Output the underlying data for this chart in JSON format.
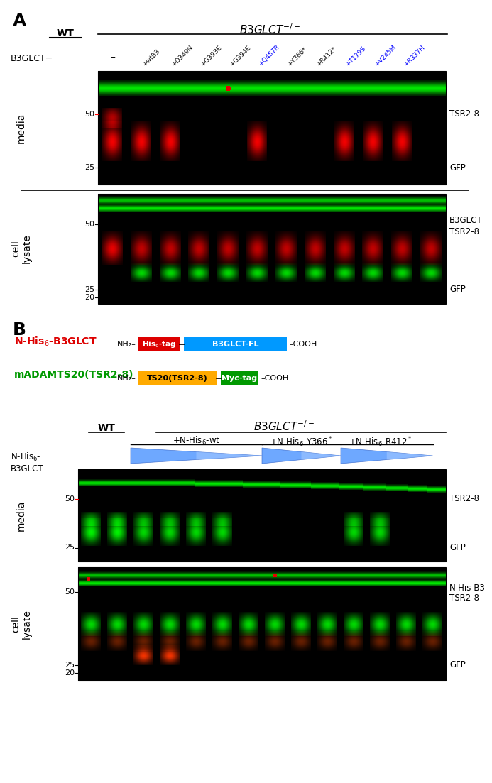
{
  "panel_A_label": "A",
  "panel_B_label": "B",
  "WT_label": "WT",
  "B3GLCT_KO_label": "B3GLCT^{-/-}",
  "panel_A_columns": [
    "+wtB3",
    "+D349N",
    "+G393E",
    "+G394E",
    "+Q457R",
    "+Y366*",
    "+R412*",
    "+T179S",
    "+V245M",
    "+R337H"
  ],
  "panel_A_col_colors": [
    "black",
    "black",
    "black",
    "black",
    "blue",
    "black",
    "black",
    "blue",
    "blue",
    "blue"
  ],
  "media_label": "media",
  "cell_lysate_label": "cell lysate",
  "TSR2_8_label": "TSR2-8",
  "GFP_label": "GFP",
  "B3GLCT_label": "B3GLCT",
  "N_His_red_color": "#dd0000",
  "mADAMTS_green_color": "#009900",
  "his_tag_color": "#dd0000",
  "b3glct_fl_color": "#0099ff",
  "ts20_color": "#ffaa00",
  "myc_tag_color": "#009900",
  "panel_B_groups": [
    "+N-His_{6}-wt",
    "+N-His_{6}-Y366^{*}",
    "+N-His_{6}-R412^{*}"
  ],
  "bg_color": "#ffffff"
}
